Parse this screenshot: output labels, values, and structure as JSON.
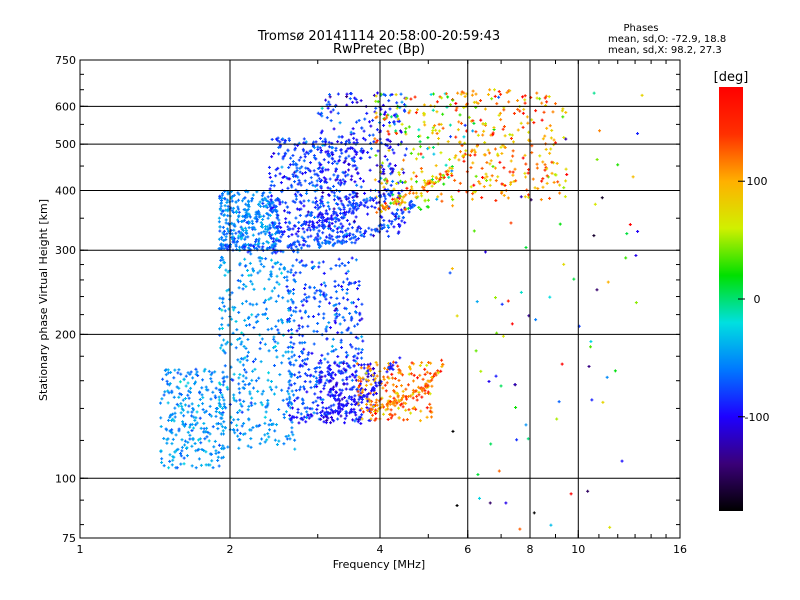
{
  "header": {
    "title": "Tromsø 20141114 20:58:00-20:59:43",
    "subtitle": "RwPretec (Bp)",
    "stats_title": "Phases",
    "stats_o": "mean, sd,O: -72.9, 18.8",
    "stats_x": "mean, sd,X:  98.2, 27.3"
  },
  "colorbar": {
    "unit_label": "[deg]",
    "range": [
      -180,
      180
    ],
    "ticks": [
      {
        "value": 100,
        "label": "100"
      },
      {
        "value": 0,
        "label": "0"
      },
      {
        "value": -100,
        "label": "-100"
      }
    ],
    "colors": [
      "#000000",
      "#3a0078",
      "#1e00ff",
      "#0078ff",
      "#00e0e0",
      "#00e000",
      "#d0f000",
      "#ffb000",
      "#ff3000",
      "#ff0000"
    ]
  },
  "chart_data": {
    "type": "scatter",
    "title": "Tromsø 20141114 20:58:00-20:59:43",
    "subtitle": "RwPretec (Bp)",
    "xlabel": "Frequency [MHz]",
    "ylabel": "Stationary phase Virtual Height [km]",
    "xscale": "log",
    "yscale": "log",
    "xlim": [
      1,
      16
    ],
    "ylim": [
      75,
      750
    ],
    "grid": true,
    "x_ticks": [
      {
        "value": 1,
        "label": "1"
      },
      {
        "value": 2,
        "label": "2"
      },
      {
        "value": 4,
        "label": "4"
      },
      {
        "value": 6,
        "label": "6"
      },
      {
        "value": 8,
        "label": "8"
      },
      {
        "value": 10,
        "label": "10"
      },
      {
        "value": 16,
        "label": "16"
      }
    ],
    "y_ticks": [
      {
        "value": 75,
        "label": "75"
      },
      {
        "value": 100,
        "label": "100"
      },
      {
        "value": 200,
        "label": "200"
      },
      {
        "value": 300,
        "label": "300"
      },
      {
        "value": 400,
        "label": "400"
      },
      {
        "value": 500,
        "label": "500"
      },
      {
        "value": 600,
        "label": "600"
      },
      {
        "value": 750,
        "label": "750"
      }
    ],
    "x_gridlines": [
      2,
      4,
      6,
      8,
      10
    ],
    "y_gridlines": [
      100,
      200,
      300,
      400,
      500,
      600
    ],
    "color_variable": "phase [deg]",
    "clusters": [
      {
        "fmin": 1.45,
        "fmax": 1.95,
        "hmin": 105,
        "hmax": 170,
        "phase_mean": -50,
        "phase_sd": 12,
        "count": 260
      },
      {
        "fmin": 1.9,
        "fmax": 2.7,
        "hmin": 115,
        "hmax": 290,
        "phase_mean": -50,
        "phase_sd": 12,
        "count": 380
      },
      {
        "fmin": 2.6,
        "fmax": 3.7,
        "hmin": 130,
        "hmax": 290,
        "phase_mean": -75,
        "phase_sd": 15,
        "count": 380
      },
      {
        "fmin": 3.0,
        "fmax": 3.9,
        "hmin": 130,
        "hmax": 175,
        "phase_mean": -100,
        "phase_sd": 10,
        "count": 160
      },
      {
        "fmin": 3.6,
        "fmax": 5.1,
        "hmin": 132,
        "hmax": 175,
        "phase_mean": 110,
        "phase_sd": 25,
        "count": 180
      },
      {
        "fmin": 1.9,
        "fmax": 2.5,
        "hmin": 300,
        "hmax": 400,
        "phase_mean": -55,
        "phase_sd": 12,
        "count": 320
      },
      {
        "fmin": 2.4,
        "fmax": 3.6,
        "hmin": 310,
        "hmax": 520,
        "phase_mean": -80,
        "phase_sd": 15,
        "count": 460
      },
      {
        "fmin": 3.0,
        "fmax": 4.5,
        "hmin": 320,
        "hmax": 640,
        "phase_mean": -90,
        "phase_sd": 18,
        "count": 300
      },
      {
        "fmin": 3.9,
        "fmax": 5.6,
        "hmin": 360,
        "hmax": 640,
        "phase_mean": 60,
        "phase_sd": 50,
        "count": 180
      },
      {
        "fmin": 5.6,
        "fmax": 9.5,
        "hmin": 380,
        "hmax": 650,
        "phase_mean": 110,
        "phase_sd": 35,
        "count": 260
      },
      {
        "fmin": 5.5,
        "fmax": 13.5,
        "hmin": 78,
        "hmax": 640,
        "phase_mean": 0,
        "phase_sd": 110,
        "count": 90
      }
    ],
    "traces": [
      {
        "f": [
          1.9,
          2.4,
          3.0,
          3.6,
          4.2,
          4.7
        ],
        "h": [
          305,
          300,
          308,
          320,
          345,
          375
        ],
        "phase_mean": -75,
        "phase_sd": 12,
        "count": 140
      },
      {
        "f": [
          2.4,
          3.0,
          3.6,
          4.3
        ],
        "h": [
          320,
          345,
          370,
          400
        ],
        "phase_mean": -85,
        "phase_sd": 10,
        "count": 80
      },
      {
        "f": [
          3.9,
          4.4,
          5.0,
          5.6
        ],
        "h": [
          360,
          385,
          410,
          440
        ],
        "phase_mean": 110,
        "phase_sd": 30,
        "count": 70
      },
      {
        "f": [
          2.6,
          3.0,
          3.4,
          3.8,
          4.1,
          4.4
        ],
        "h": [
          132,
          136,
          140,
          150,
          165,
          180
        ],
        "phase_mean": -95,
        "phase_sd": 8,
        "count": 80
      },
      {
        "f": [
          3.8,
          4.2,
          4.6,
          5.0,
          5.4
        ],
        "h": [
          140,
          143,
          148,
          158,
          175
        ],
        "phase_mean": 120,
        "phase_sd": 20,
        "count": 70
      }
    ]
  }
}
